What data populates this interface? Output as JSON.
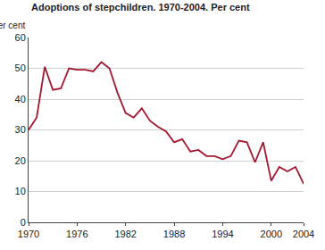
{
  "chart_data": {
    "type": "line",
    "title": "Adoptions of stepchildren. 1970-2004. Per cent",
    "y_label": "Per cent",
    "x": [
      1970,
      1971,
      1972,
      1973,
      1974,
      1975,
      1976,
      1977,
      1978,
      1979,
      1980,
      1981,
      1982,
      1983,
      1984,
      1985,
      1986,
      1987,
      1988,
      1989,
      1990,
      1991,
      1992,
      1993,
      1994,
      1995,
      1996,
      1997,
      1998,
      1999,
      2000,
      2001,
      2002,
      2003,
      2004
    ],
    "values": [
      30,
      34,
      50.5,
      43,
      43.5,
      50,
      49.5,
      49.5,
      49,
      52,
      50,
      42,
      35.5,
      34,
      37,
      33,
      31,
      29.5,
      26,
      27,
      23,
      23.5,
      21.5,
      21.5,
      20.5,
      21.5,
      26.5,
      26,
      19.5,
      26,
      13.5,
      18,
      16.5,
      18,
      12.5
    ],
    "color": "#a3172f",
    "xlim": [
      1970,
      2004
    ],
    "xticks": [
      1970,
      1976,
      1982,
      1988,
      1994,
      2000,
      2004
    ],
    "ylim": [
      0,
      60
    ],
    "yticks": [
      0,
      10,
      20,
      30,
      40,
      50,
      60
    ],
    "grid": true
  }
}
